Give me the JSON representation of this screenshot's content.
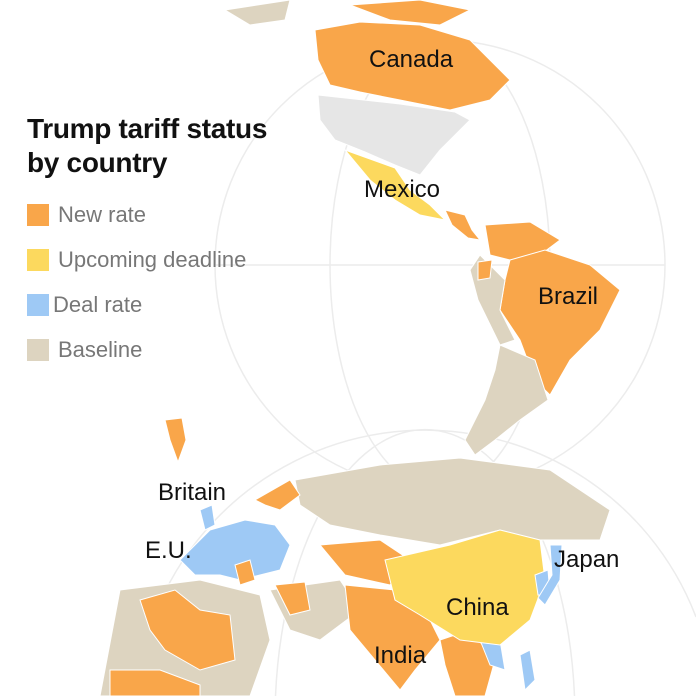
{
  "title": "Trump tariff status by country",
  "title_lines": [
    "Trump tariff status",
    "by country"
  ],
  "legend": [
    {
      "label": "New rate",
      "color": "#f9a64a"
    },
    {
      "label": "Upcoming deadline",
      "color": "#fcd95e"
    },
    {
      "label": "Deal rate",
      "color": "#9ec9f5"
    },
    {
      "label": "Baseline",
      "color": "#ddd4c0"
    }
  ],
  "colors": {
    "no_data_land": "#e6e6e6",
    "graticule": "#ececec"
  },
  "country_labels": {
    "canada": "Canada",
    "mexico": "Mexico",
    "brazil": "Brazil",
    "britain": "Britain",
    "eu": "E.U.",
    "japan": "Japan",
    "china": "China",
    "india": "India"
  }
}
